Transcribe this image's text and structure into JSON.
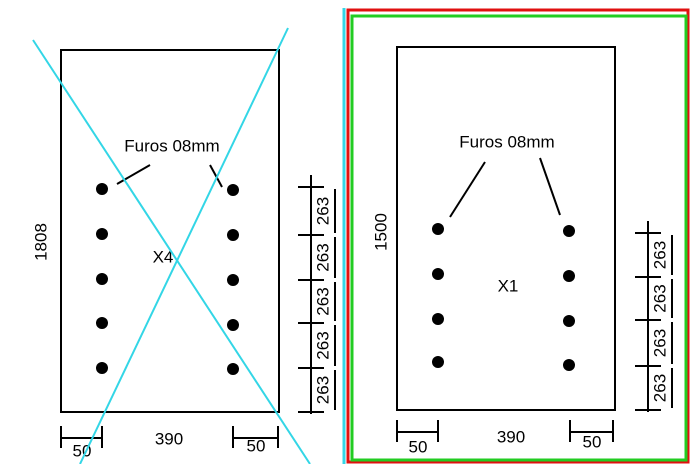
{
  "left": {
    "label": "Furos  08mm",
    "height": "1808",
    "quantity": "X4",
    "width": "390",
    "margins": [
      "50",
      "50"
    ],
    "spacings": [
      "263",
      "263",
      "263",
      "263",
      "263"
    ]
  },
  "right": {
    "label": "Furos  08mm",
    "height": "1500",
    "quantity": "X1",
    "width": "390",
    "margins": [
      "50",
      "50"
    ],
    "spacings": [
      "263",
      "263",
      "263",
      "263"
    ]
  }
}
